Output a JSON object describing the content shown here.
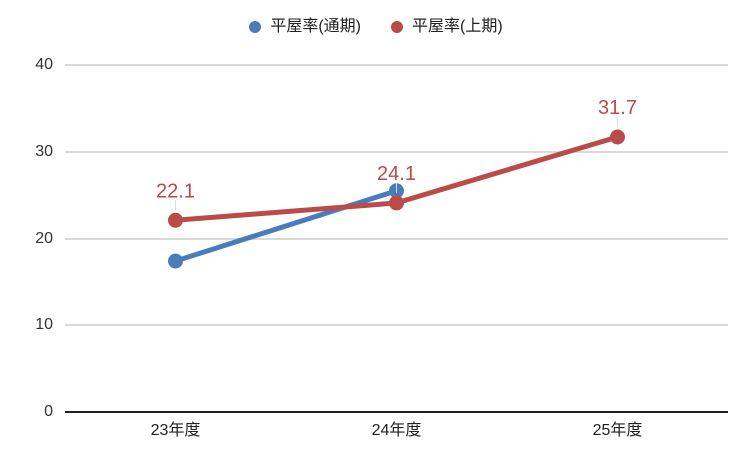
{
  "chart_data": {
    "type": "line",
    "title": "",
    "xlabel": "",
    "ylabel": "",
    "categories": [
      "23年度",
      "24年度",
      "25年度"
    ],
    "series": [
      {
        "name": "平屋率(通期)",
        "color": "#4a7cbb",
        "values": [
          17.4,
          25.5,
          null
        ],
        "show_labels": false,
        "labels": []
      },
      {
        "name": "平屋率(上期)",
        "color": "#b94b48",
        "values": [
          22.1,
          24.1,
          31.7
        ],
        "show_labels": true,
        "labels": [
          "22.1",
          "24.1",
          "31.7"
        ]
      }
    ],
    "ylim": [
      0,
      40
    ],
    "yticks": [
      0,
      10,
      20,
      30,
      40
    ],
    "grid": true,
    "legend_position": "top-center",
    "colors": {
      "background": "#ffffff",
      "gridline": "#d9d9d9",
      "baseline": "#1f1f1f",
      "tick_label": "#333333",
      "leader_line": "#dcdcdc"
    }
  }
}
